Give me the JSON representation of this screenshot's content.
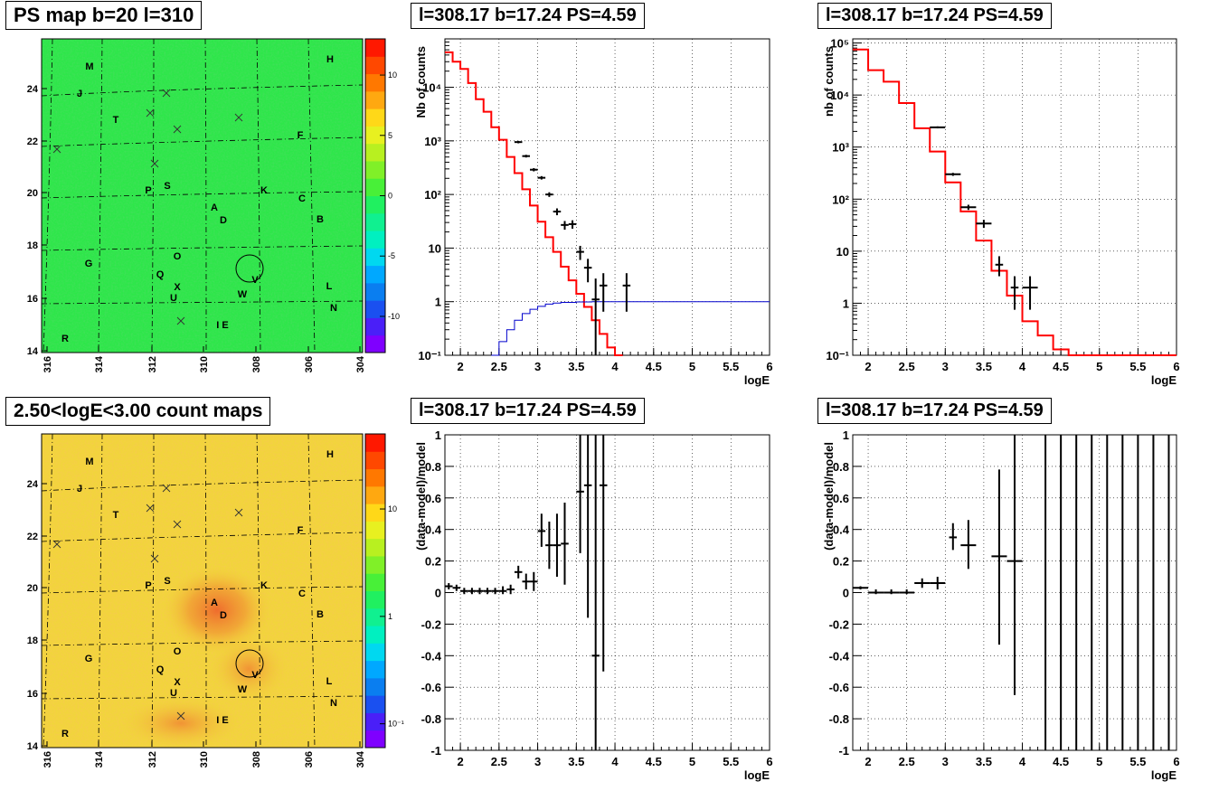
{
  "panels": {
    "map1_title": "PS map b=20 l=310",
    "map2_title": "2.50<logE<3.00 count maps",
    "spec_title": "l=308.17 b=17.24 PS=4.59"
  },
  "map": {
    "lon_ticks": [
      "316",
      "314",
      "312",
      "310",
      "308",
      "306",
      "304"
    ],
    "lat_ticks": [
      "14",
      "16",
      "18",
      "20",
      "22",
      "24"
    ],
    "labels": [
      "M",
      "H",
      "J",
      "T",
      "F",
      "P",
      "S",
      "K",
      "C",
      "A",
      "D",
      "B",
      "O",
      "G",
      "Q",
      "X",
      "U",
      "W",
      "V",
      "L",
      "N",
      "I E",
      "R"
    ],
    "cross_marker": "x",
    "circle_label": "V",
    "colors": {
      "ps_background": "#2ee64a",
      "counts_background": "#f2d43c",
      "counts_hotspot": "#f08a30"
    }
  },
  "colorbars": {
    "ps_ticks": [
      "10",
      "5",
      "0",
      "-5",
      "-10"
    ],
    "ps_values": [
      10,
      5,
      0,
      -5,
      -10
    ],
    "ps_range": [
      -13,
      13
    ],
    "counts_ticks": [
      "10",
      "1",
      "10⁻¹"
    ],
    "counts_values": [
      10,
      1,
      0.1
    ],
    "counts_range_log": [
      0.06,
      50
    ],
    "palette": [
      "#7f00ff",
      "#4a1ff8",
      "#1a50f0",
      "#0a7ef0",
      "#00a8ff",
      "#00d8f0",
      "#00f0c0",
      "#10f090",
      "#20f060",
      "#48f038",
      "#80f028",
      "#b8f020",
      "#e8f020",
      "#ffd818",
      "#ffa810",
      "#ff7800",
      "#ff4800",
      "#ff1800"
    ]
  },
  "chart_data": [
    {
      "type": "line",
      "title": "l=308.17 b=17.24 PS=4.59",
      "xlabel": "logE",
      "ylabel": "Nb of counts",
      "xlim": [
        1.8,
        6
      ],
      "ylim": [
        0.1,
        80000
      ],
      "yscale": "log",
      "grid": true,
      "x_ticks": [
        "2",
        "2.5",
        "3",
        "3.5",
        "4",
        "4.5",
        "5",
        "5.5",
        "6"
      ],
      "y_ticks": [
        {
          "v": 0.1,
          "l": "10⁻¹"
        },
        {
          "v": 1,
          "l": "1"
        },
        {
          "v": 10,
          "l": "10"
        },
        {
          "v": 100,
          "l": "10²"
        },
        {
          "v": 1000,
          "l": "10³"
        },
        {
          "v": 10000,
          "l": "10⁴"
        }
      ],
      "edges": [
        1.8,
        1.9,
        2.0,
        2.1,
        2.2,
        2.3,
        2.4,
        2.5,
        2.6,
        2.7,
        2.8,
        2.9,
        3.0,
        3.1,
        3.2,
        3.3,
        3.4,
        3.5,
        3.6,
        3.7,
        3.8,
        3.9,
        4.0,
        4.1,
        4.2,
        4.3,
        6.0
      ],
      "model": [
        45000,
        30000,
        22000,
        12000,
        6000,
        3500,
        1800,
        1050,
        500,
        250,
        125,
        62,
        31,
        16,
        8.5,
        4.5,
        2.5,
        1.4,
        0.8,
        0.45,
        0.25,
        0.14,
        0.1
      ],
      "acceptance": [
        {
          "x": [
            2.4,
            2.5
          ],
          "y": 0.1
        },
        {
          "x": [
            2.5,
            2.6
          ],
          "y": 0.18
        },
        {
          "x": [
            2.6,
            2.7
          ],
          "y": 0.3
        },
        {
          "x": [
            2.7,
            2.8
          ],
          "y": 0.45
        },
        {
          "x": [
            2.8,
            2.9
          ],
          "y": 0.6
        },
        {
          "x": [
            2.9,
            3.0
          ],
          "y": 0.72
        },
        {
          "x": [
            3.0,
            3.1
          ],
          "y": 0.82
        },
        {
          "x": [
            3.1,
            3.2
          ],
          "y": 0.9
        },
        {
          "x": [
            3.2,
            3.3
          ],
          "y": 0.94
        },
        {
          "x": [
            3.3,
            3.5
          ],
          "y": 0.97
        },
        {
          "x": [
            3.5,
            3.7
          ],
          "y": 0.99
        },
        {
          "x": [
            3.7,
            6.0
          ],
          "y": 1.0
        }
      ],
      "data": [
        {
          "x": 2.75,
          "y": 950,
          "dx": 0.05,
          "lo": 900,
          "hi": 1000
        },
        {
          "x": 2.85,
          "y": 520,
          "dx": 0.05,
          "lo": 490,
          "hi": 550
        },
        {
          "x": 2.95,
          "y": 290,
          "dx": 0.05,
          "lo": 270,
          "hi": 310
        },
        {
          "x": 3.05,
          "y": 205,
          "dx": 0.05,
          "lo": 190,
          "hi": 220
        },
        {
          "x": 3.15,
          "y": 100,
          "dx": 0.05,
          "lo": 90,
          "hi": 110
        },
        {
          "x": 3.25,
          "y": 48,
          "dx": 0.05,
          "lo": 41,
          "hi": 55
        },
        {
          "x": 3.35,
          "y": 27,
          "dx": 0.05,
          "lo": 22,
          "hi": 32
        },
        {
          "x": 3.45,
          "y": 28,
          "dx": 0.05,
          "lo": 23,
          "hi": 33
        },
        {
          "x": 3.55,
          "y": 8.5,
          "dx": 0.05,
          "lo": 6,
          "hi": 11
        },
        {
          "x": 3.65,
          "y": 4.3,
          "dx": 0.05,
          "lo": 2.3,
          "hi": 6.3
        },
        {
          "x": 3.75,
          "y": 1.1,
          "dx": 0.05,
          "lo": 0.1,
          "hi": 2.7
        },
        {
          "x": 3.85,
          "y": 2.0,
          "dx": 0.05,
          "lo": 0.65,
          "hi": 3.4
        },
        {
          "x": 4.15,
          "y": 2.0,
          "dx": 0.05,
          "lo": 0.65,
          "hi": 3.4
        }
      ]
    },
    {
      "type": "line",
      "title": "l=308.17 b=17.24 PS=4.59",
      "xlabel": "logE",
      "ylabel": "nb of counts",
      "xlim": [
        1.8,
        6
      ],
      "ylim": [
        0.1,
        120000
      ],
      "yscale": "log",
      "grid": true,
      "x_ticks": [
        "2",
        "2.5",
        "3",
        "3.5",
        "4",
        "4.5",
        "5",
        "5.5",
        "6"
      ],
      "y_ticks": [
        {
          "v": 0.1,
          "l": "10⁻¹"
        },
        {
          "v": 1,
          "l": "1"
        },
        {
          "v": 10,
          "l": "10"
        },
        {
          "v": 100,
          "l": "10²"
        },
        {
          "v": 1000,
          "l": "10³"
        },
        {
          "v": 10000,
          "l": "10⁴"
        },
        {
          "v": 100000,
          "l": "10⁵"
        }
      ],
      "edges": [
        1.8,
        2.0,
        2.2,
        2.4,
        2.6,
        2.8,
        3.0,
        3.2,
        3.4,
        3.6,
        3.8,
        4.0,
        4.2,
        4.4,
        4.6,
        6.0
      ],
      "model": [
        75000,
        30000,
        18000,
        7000,
        2300,
        820,
        210,
        58,
        16,
        4.2,
        1.4,
        0.45,
        0.24,
        0.13,
        0.1
      ],
      "data": [
        {
          "x": 2.9,
          "y": 2400,
          "dx": 0.1,
          "lo": 2300,
          "hi": 2500
        },
        {
          "x": 3.1,
          "y": 300,
          "dx": 0.1,
          "lo": 280,
          "hi": 320
        },
        {
          "x": 3.3,
          "y": 70,
          "dx": 0.1,
          "lo": 62,
          "hi": 78
        },
        {
          "x": 3.5,
          "y": 34,
          "dx": 0.1,
          "lo": 28,
          "hi": 40
        },
        {
          "x": 3.7,
          "y": 5.5,
          "dx": 0.05,
          "lo": 3.3,
          "hi": 8
        },
        {
          "x": 3.9,
          "y": 2.0,
          "dx": 0.05,
          "lo": 0.75,
          "hi": 3.3
        },
        {
          "x": 4.1,
          "y": 2.0,
          "dx": 0.1,
          "lo": 0.75,
          "hi": 3.3
        }
      ]
    },
    {
      "type": "scatter",
      "title": "l=308.17 b=17.24 PS=4.59",
      "xlabel": "logE",
      "ylabel": "(data-model)/model",
      "xlim": [
        1.8,
        6
      ],
      "ylim": [
        -1,
        1
      ],
      "grid": true,
      "x_ticks": [
        "2",
        "2.5",
        "3",
        "3.5",
        "4",
        "4.5",
        "5",
        "5.5",
        "6"
      ],
      "y_ticks": [
        "-1",
        "-0.8",
        "-0.6",
        "-0.4",
        "-0.2",
        "0",
        "0.2",
        "0.4",
        "0.6",
        "0.8",
        "1"
      ],
      "data": [
        {
          "x": 1.85,
          "y": 0.04,
          "dx": 0.05,
          "lo": 0.02,
          "hi": 0.06
        },
        {
          "x": 1.95,
          "y": 0.03,
          "dx": 0.05,
          "lo": 0.01,
          "hi": 0.05
        },
        {
          "x": 2.05,
          "y": 0.01,
          "dx": 0.05,
          "lo": -0.01,
          "hi": 0.03
        },
        {
          "x": 2.15,
          "y": 0.01,
          "dx": 0.05,
          "lo": -0.01,
          "hi": 0.03
        },
        {
          "x": 2.25,
          "y": 0.01,
          "dx": 0.05,
          "lo": -0.01,
          "hi": 0.03
        },
        {
          "x": 2.35,
          "y": 0.01,
          "dx": 0.05,
          "lo": -0.01,
          "hi": 0.03
        },
        {
          "x": 2.45,
          "y": 0.01,
          "dx": 0.05,
          "lo": -0.01,
          "hi": 0.03
        },
        {
          "x": 2.55,
          "y": 0.01,
          "dx": 0.05,
          "lo": -0.01,
          "hi": 0.04
        },
        {
          "x": 2.65,
          "y": 0.02,
          "dx": 0.05,
          "lo": -0.01,
          "hi": 0.05
        },
        {
          "x": 2.75,
          "y": 0.13,
          "dx": 0.05,
          "lo": 0.09,
          "hi": 0.17
        },
        {
          "x": 2.85,
          "y": 0.07,
          "dx": 0.05,
          "lo": 0.02,
          "hi": 0.12
        },
        {
          "x": 2.95,
          "y": 0.07,
          "dx": 0.05,
          "lo": 0.01,
          "hi": 0.13
        },
        {
          "x": 3.05,
          "y": 0.39,
          "dx": 0.05,
          "lo": 0.29,
          "hi": 0.5
        },
        {
          "x": 3.15,
          "y": 0.3,
          "dx": 0.05,
          "lo": 0.15,
          "hi": 0.45
        },
        {
          "x": 3.25,
          "y": 0.3,
          "dx": 0.05,
          "lo": 0.1,
          "hi": 0.5
        },
        {
          "x": 3.35,
          "y": 0.31,
          "dx": 0.05,
          "lo": 0.05,
          "hi": 0.57
        },
        {
          "x": 3.55,
          "y": 0.64,
          "dx": 0.05,
          "lo": 0.25,
          "hi": 1.0
        },
        {
          "x": 3.65,
          "y": 0.68,
          "dx": 0.05,
          "lo": -0.16,
          "hi": 1.0
        },
        {
          "x": 3.75,
          "y": -0.4,
          "dx": 0.05,
          "lo": -1.0,
          "hi": 1.0
        },
        {
          "x": 3.85,
          "y": 0.68,
          "dx": 0.05,
          "lo": -0.5,
          "hi": 1.0
        }
      ]
    },
    {
      "type": "scatter",
      "title": "l=308.17 b=17.24 PS=4.59",
      "xlabel": "logE",
      "ylabel": "(data-model)/model",
      "xlim": [
        1.8,
        6
      ],
      "ylim": [
        -1,
        1
      ],
      "grid": true,
      "x_ticks": [
        "2",
        "2.5",
        "3",
        "3.5",
        "4",
        "4.5",
        "5",
        "5.5",
        "6"
      ],
      "y_ticks": [
        "-1",
        "-0.8",
        "-0.6",
        "-0.4",
        "-0.2",
        "0",
        "0.2",
        "0.4",
        "0.6",
        "0.8",
        "1"
      ],
      "data": [
        {
          "x": 1.9,
          "y": 0.03,
          "dx": 0.1,
          "lo": 0.02,
          "hi": 0.04
        },
        {
          "x": 2.1,
          "y": 0.0,
          "dx": 0.1,
          "lo": -0.01,
          "hi": 0.02
        },
        {
          "x": 2.3,
          "y": 0.0,
          "dx": 0.1,
          "lo": -0.01,
          "hi": 0.02
        },
        {
          "x": 2.5,
          "y": 0.0,
          "dx": 0.1,
          "lo": -0.01,
          "hi": 0.02
        },
        {
          "x": 2.7,
          "y": 0.06,
          "dx": 0.1,
          "lo": 0.03,
          "hi": 0.09
        },
        {
          "x": 2.9,
          "y": 0.06,
          "dx": 0.1,
          "lo": 0.02,
          "hi": 0.1
        },
        {
          "x": 3.1,
          "y": 0.35,
          "dx": 0.05,
          "lo": 0.27,
          "hi": 0.44
        },
        {
          "x": 3.3,
          "y": 0.3,
          "dx": 0.1,
          "lo": 0.15,
          "hi": 0.46
        },
        {
          "x": 3.7,
          "y": 0.23,
          "dx": 0.1,
          "lo": -0.33,
          "hi": 0.78
        },
        {
          "x": 3.9,
          "y": 0.2,
          "dx": 0.1,
          "lo": -0.65,
          "hi": 1.0
        }
      ],
      "full_bars_x": [
        4.3,
        4.5,
        4.7,
        4.9,
        5.1,
        5.3,
        5.5,
        5.7,
        5.9
      ]
    }
  ]
}
